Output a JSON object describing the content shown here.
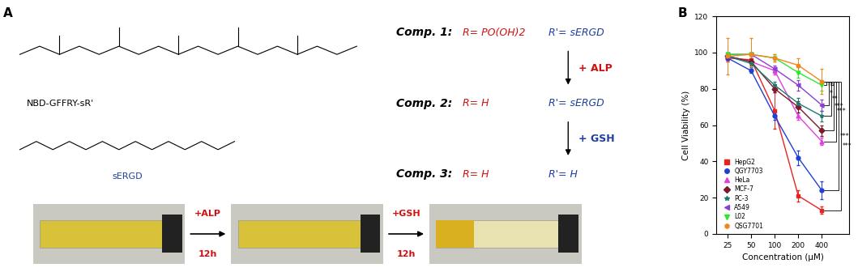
{
  "panel_labels": [
    "A",
    "B"
  ],
  "scheme": {
    "structure_name": "NBD-GFFRY-sR'",
    "fragment_name": "sERGD",
    "compounds": [
      {
        "name": "Comp. 1:",
        "R": "R= PO(OH)2",
        "R_prime": "R'= sERGD"
      },
      {
        "name": "Comp. 2:",
        "R": "R= H",
        "R_prime": "R'= sERGD"
      },
      {
        "name": "Comp. 3:",
        "R": "R= H",
        "R_prime": "R'= H"
      }
    ],
    "steps": [
      "+ ALP",
      "+ GSH"
    ],
    "vial_steps": [
      {
        "reagent": "+ALP",
        "time": "12h"
      },
      {
        "reagent": "+GSH",
        "time": "12h"
      }
    ]
  },
  "chart_data": {
    "type": "line",
    "xlabel": "Concentration (µM)",
    "ylabel": "Cell Viability (%)",
    "log": "x",
    "x": [
      25,
      50,
      100,
      200,
      400
    ],
    "xlim": [
      18,
      900
    ],
    "xticks": [
      25,
      50,
      100,
      200,
      400
    ],
    "ylim": [
      0,
      120
    ],
    "yticks": [
      0,
      20,
      40,
      60,
      80,
      100,
      120
    ],
    "legend": "lower left",
    "series": [
      {
        "name": "HepG2",
        "color": "#e8231f",
        "marker": "square",
        "values": [
          97,
          96,
          68,
          21,
          13
        ],
        "errors": [
          2,
          2,
          10,
          3,
          2
        ]
      },
      {
        "name": "QGY7703",
        "color": "#1f3fd6",
        "marker": "circle",
        "values": [
          97,
          90,
          65,
          42,
          24
        ],
        "errors": [
          1,
          1,
          2,
          4,
          5
        ]
      },
      {
        "name": "HeLa",
        "color": "#e040e0",
        "marker": "triangle",
        "values": [
          98,
          95,
          90,
          65,
          51
        ],
        "errors": [
          1,
          1,
          2,
          2,
          2
        ]
      },
      {
        "name": "MCF-7",
        "color": "#7b1a2a",
        "marker": "diamond",
        "values": [
          98,
          95,
          80,
          70,
          57
        ],
        "errors": [
          1,
          2,
          2,
          3,
          3
        ]
      },
      {
        "name": "PC-3",
        "color": "#1f7a6e",
        "marker": "star",
        "values": [
          98,
          94,
          82,
          72,
          65
        ],
        "errors": [
          1,
          2,
          2,
          3,
          3
        ]
      },
      {
        "name": "A549",
        "color": "#8a3fd6",
        "marker": "triangle_left",
        "values": [
          99,
          99,
          91,
          82,
          71
        ],
        "errors": [
          1,
          1,
          2,
          3,
          3
        ]
      },
      {
        "name": "L02",
        "color": "#2ee82e",
        "marker": "triangle_down",
        "values": [
          99,
          99,
          97,
          89,
          82
        ],
        "errors": [
          1,
          1,
          2,
          3,
          3
        ]
      },
      {
        "name": "QSG7701",
        "color": "#f2851d",
        "marker": "hexagon",
        "values": [
          98,
          99,
          97,
          93,
          84
        ],
        "errors": [
          10,
          9,
          2,
          4,
          7
        ]
      }
    ],
    "significance": {
      "reference": "QSG7701",
      "comparisons": [
        {
          "target": "L02",
          "label": "ns"
        },
        {
          "target": "A549",
          "label": "*"
        },
        {
          "target": "PC-3",
          "label": "**"
        },
        {
          "target": "MCF-7",
          "label": "***"
        },
        {
          "target": "HeLa",
          "label": "***"
        },
        {
          "target": "QGY7703",
          "label": "***"
        },
        {
          "target": "HepG2",
          "label": "***"
        }
      ]
    }
  }
}
